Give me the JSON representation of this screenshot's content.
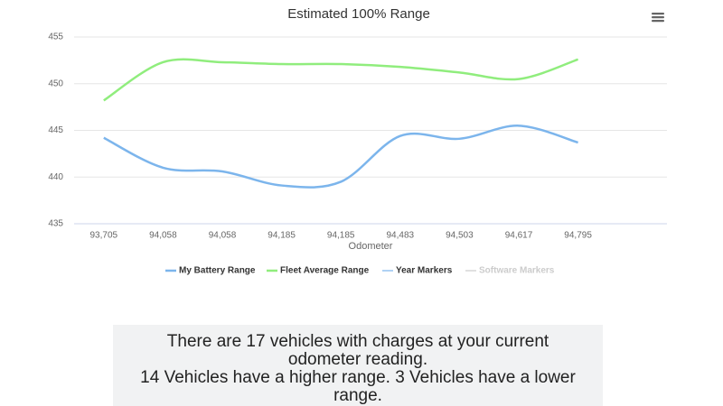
{
  "chart_data": {
    "type": "line",
    "title": "Estimated 100% Range",
    "categories": [
      "93,705",
      "94,058",
      "94,058",
      "94,185",
      "94,185",
      "94,483",
      "94,503",
      "94,617",
      "94,795",
      null
    ],
    "xlabel": "Odometer",
    "ylim": [
      435,
      455
    ],
    "yticks": [
      435,
      440,
      445,
      450,
      455
    ],
    "grid": true,
    "series": [
      {
        "name": "My Battery Range",
        "color": "#7cb5ec",
        "values": [
          444.2,
          441.0,
          440.6,
          439.1,
          439.5,
          444.4,
          444.1,
          445.5,
          443.7,
          null
        ]
      },
      {
        "name": "Fleet Average Range",
        "color": "#90ed7d",
        "values": [
          448.2,
          452.3,
          452.3,
          452.1,
          452.1,
          451.8,
          451.2,
          450.5,
          452.6,
          null
        ]
      },
      {
        "name": "Year Markers",
        "color": "#7cb5ec"
      },
      {
        "name": "Software Markers",
        "color": "#cccccc",
        "hidden": true
      }
    ]
  },
  "info": {
    "lines": [
      "There are 17 vehicles with charges at your current odometer reading.",
      "14 Vehicles have a higher range. 3 Vehicles have a lower range."
    ]
  }
}
